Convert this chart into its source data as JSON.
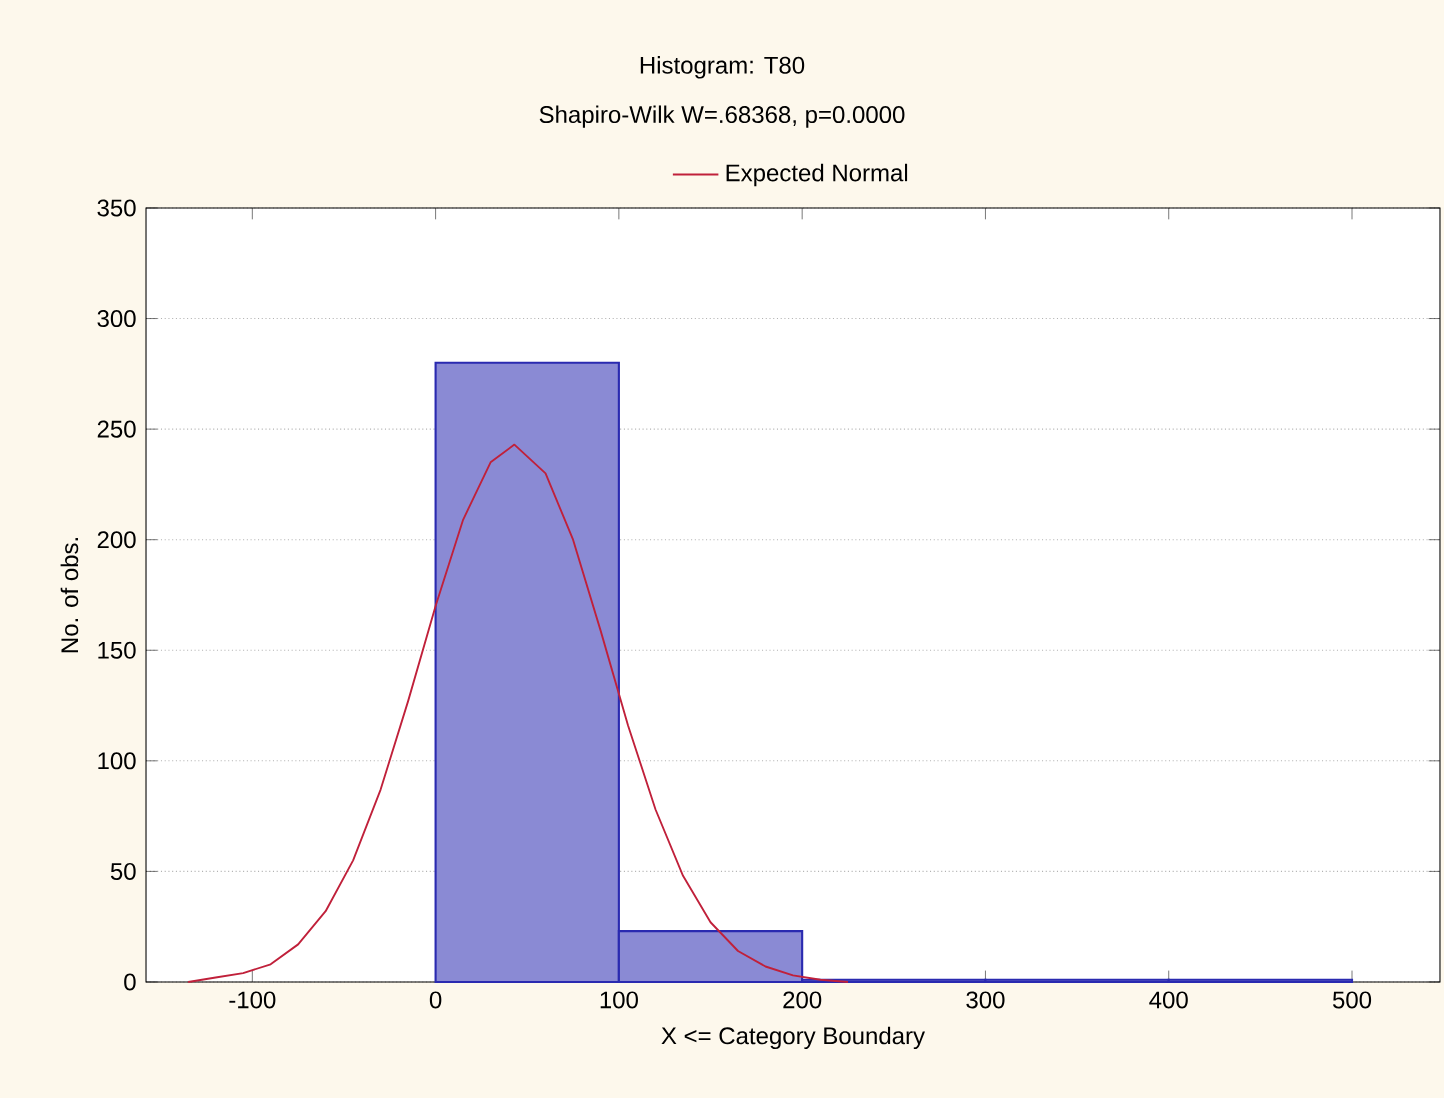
{
  "chart_data": {
    "type": "histogram",
    "title": "Histogram: T80",
    "subtitle": "Shapiro-Wilk W=.68368, p=0.0000",
    "xlabel": "X <= Category Boundary",
    "ylabel": "No. of obs.",
    "bins": [
      0,
      100,
      200,
      300,
      400,
      500
    ],
    "values": [
      280,
      23,
      1,
      1,
      1
    ],
    "color": "#2a2ab0",
    "series": [
      {
        "name": "Expected Normal",
        "type": "line",
        "color": "#c0203a",
        "x": [
          -135,
          -120,
          -105,
          -90,
          -75,
          -60,
          -45,
          -30,
          -15,
          0,
          15,
          30,
          43,
          60,
          75,
          90,
          105,
          120,
          135,
          150,
          165,
          180,
          195,
          210,
          225
        ],
        "values": [
          0,
          2,
          4,
          8,
          17,
          32,
          55,
          87,
          127,
          170,
          209,
          235,
          243,
          230,
          200,
          159,
          116,
          78,
          48,
          27,
          14,
          7,
          3,
          1,
          0
        ]
      }
    ],
    "xlim": [
      -158,
      548
    ],
    "ylim": [
      0,
      350
    ],
    "xticks": [
      -100,
      0,
      100,
      200,
      300,
      400,
      500
    ],
    "yticks": [
      0,
      50,
      100,
      150,
      200,
      250,
      300,
      350
    ],
    "grid": "y",
    "legend": "top"
  }
}
